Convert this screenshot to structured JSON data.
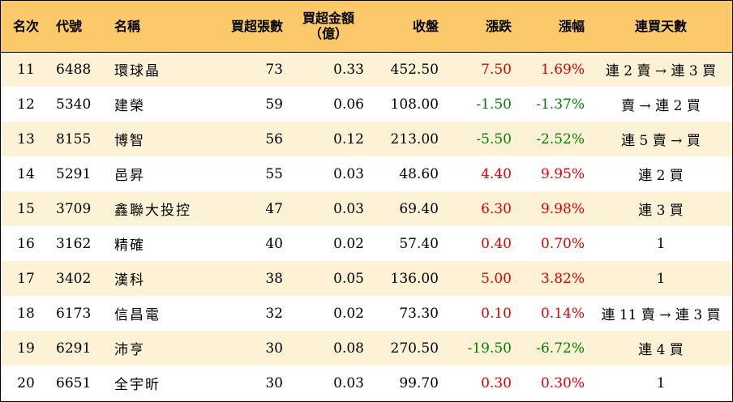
{
  "headers": {
    "rank": "名次",
    "code": "代號",
    "name": "名稱",
    "net_buy_lots": "買超張數",
    "net_buy_amount_line1": "買超金額",
    "net_buy_amount_line2": "（億）",
    "close": "收盤",
    "change": "漲跌",
    "change_pct": "漲幅",
    "consecutive_days": "連買天數"
  },
  "rows": [
    {
      "rank": "11",
      "code": "6488",
      "name": "環球晶",
      "lots": "73",
      "amount": "0.33",
      "close": "452.50",
      "change": "7.50",
      "pct": "1.69%",
      "days": "連 2 賣 → 連 3 買",
      "dir": "up"
    },
    {
      "rank": "12",
      "code": "5340",
      "name": "建榮",
      "lots": "59",
      "amount": "0.06",
      "close": "108.00",
      "change": "-1.50",
      "pct": "-1.37%",
      "days": "賣 → 連 2 買",
      "dir": "down"
    },
    {
      "rank": "13",
      "code": "8155",
      "name": "博智",
      "lots": "56",
      "amount": "0.12",
      "close": "213.00",
      "change": "-5.50",
      "pct": "-2.52%",
      "days": "連 5 賣 → 買",
      "dir": "down"
    },
    {
      "rank": "14",
      "code": "5291",
      "name": "邑昇",
      "lots": "55",
      "amount": "0.03",
      "close": "48.60",
      "change": "4.40",
      "pct": "9.95%",
      "days": "連 2 買",
      "dir": "up"
    },
    {
      "rank": "15",
      "code": "3709",
      "name": "鑫聯大投控",
      "lots": "47",
      "amount": "0.03",
      "close": "69.40",
      "change": "6.30",
      "pct": "9.98%",
      "days": "連 3 買",
      "dir": "up"
    },
    {
      "rank": "16",
      "code": "3162",
      "name": "精確",
      "lots": "40",
      "amount": "0.02",
      "close": "57.40",
      "change": "0.40",
      "pct": "0.70%",
      "days": "1",
      "dir": "up"
    },
    {
      "rank": "17",
      "code": "3402",
      "name": "漢科",
      "lots": "38",
      "amount": "0.05",
      "close": "136.00",
      "change": "5.00",
      "pct": "3.82%",
      "days": "1",
      "dir": "up"
    },
    {
      "rank": "18",
      "code": "6173",
      "name": "信昌電",
      "lots": "32",
      "amount": "0.02",
      "close": "73.30",
      "change": "0.10",
      "pct": "0.14%",
      "days": "連 11 賣 → 連 3 買",
      "dir": "up"
    },
    {
      "rank": "19",
      "code": "6291",
      "name": "沛亨",
      "lots": "30",
      "amount": "0.08",
      "close": "270.50",
      "change": "-19.50",
      "pct": "-6.72%",
      "days": "連 4 買",
      "dir": "down"
    },
    {
      "rank": "20",
      "code": "6651",
      "name": "全宇昕",
      "lots": "30",
      "amount": "0.03",
      "close": "99.70",
      "change": "0.30",
      "pct": "0.30%",
      "days": "1",
      "dir": "up"
    }
  ],
  "colors": {
    "header_bg": "#fcc96a",
    "stripe_bg": "#fef2d6",
    "up": "#e00000",
    "down": "#008000"
  }
}
